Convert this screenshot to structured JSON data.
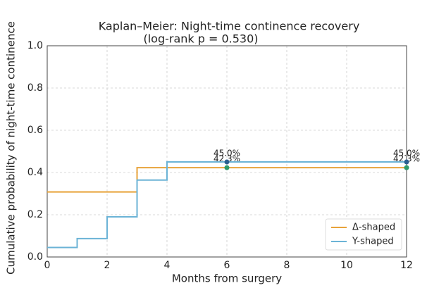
{
  "chart_data": {
    "type": "step",
    "title": "Kaplan–Meier: Night-time continence recovery",
    "subtitle": "(log-rank p = 0.530)",
    "x_label": "Months from surgery",
    "y_label": "Cumulative probability of night-time continence",
    "xlim": [
      0,
      12
    ],
    "xticks": [
      0,
      2,
      4,
      6,
      8,
      10,
      12
    ],
    "ylim": [
      0,
      1
    ],
    "yticks": [
      {
        "value": 0,
        "label": "0.0"
      },
      0.2,
      0.4,
      0.6,
      0.8,
      {
        "value": 1,
        "label": "1.0"
      }
    ],
    "grid": true,
    "legend": "lower right",
    "series": [
      {
        "name": "Δ-shaped",
        "color": "#e8a33a",
        "x": [
          0,
          3,
          12
        ],
        "values": [
          0.308,
          0.423,
          0.423
        ],
        "marker_color": "#2e9a6a",
        "marker_x": [
          6,
          12
        ],
        "marker_values": [
          0.423,
          0.423
        ],
        "marker_labels": [
          "42.3%",
          "42.3%"
        ]
      },
      {
        "name": "Y-shaped",
        "color": "#6bb3d6",
        "x": [
          0,
          1,
          2,
          3,
          4,
          12
        ],
        "values": [
          0.045,
          0.087,
          0.19,
          0.364,
          0.45,
          0.45
        ],
        "marker_color": "#2b5f8f",
        "marker_x": [
          6,
          12
        ],
        "marker_values": [
          0.45,
          0.45
        ],
        "marker_labels": [
          "45.0%",
          "45.0%"
        ]
      }
    ]
  }
}
